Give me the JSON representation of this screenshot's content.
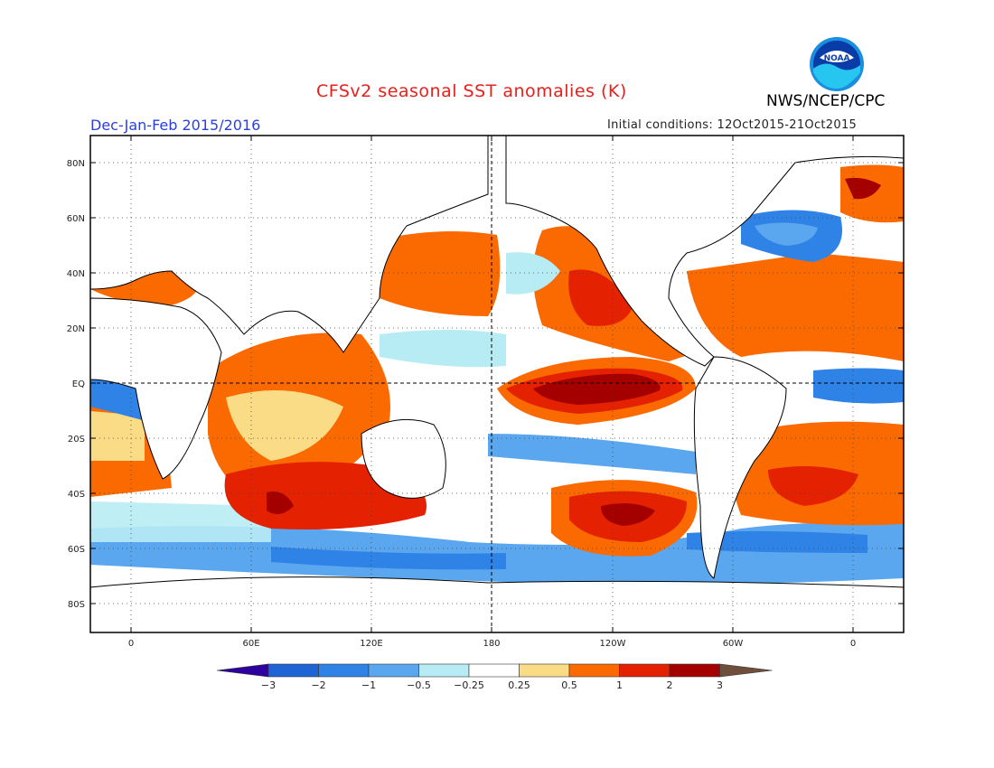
{
  "title": "CFSv2 seasonal SST anomalies (K)",
  "season": "Dec-Jan-Feb 2015/2016",
  "initial_conditions": "Initial conditions: 12Oct2015-21Oct2015",
  "agency": "NWS/NCEP/CPC",
  "logo_text": "NOAA",
  "lat_labels": [
    "80N",
    "60N",
    "40N",
    "20N",
    "EQ",
    "20S",
    "40S",
    "60S",
    "80S"
  ],
  "lon_labels": [
    "0",
    "60E",
    "120E",
    "180",
    "120W",
    "60W",
    "0"
  ],
  "colorbar": {
    "labels": [
      "−3",
      "−2",
      "−1",
      "−0.5",
      "−0.25",
      "0.25",
      "0.5",
      "1",
      "2",
      "3"
    ],
    "colors": [
      "#2e00a0",
      "#1f64d4",
      "#2f83e6",
      "#5aa7ef",
      "#b8ecf4",
      "#ffffff",
      "#fbdc86",
      "#fb6a00",
      "#e42100",
      "#a50000",
      "#6f4e3b"
    ]
  }
}
